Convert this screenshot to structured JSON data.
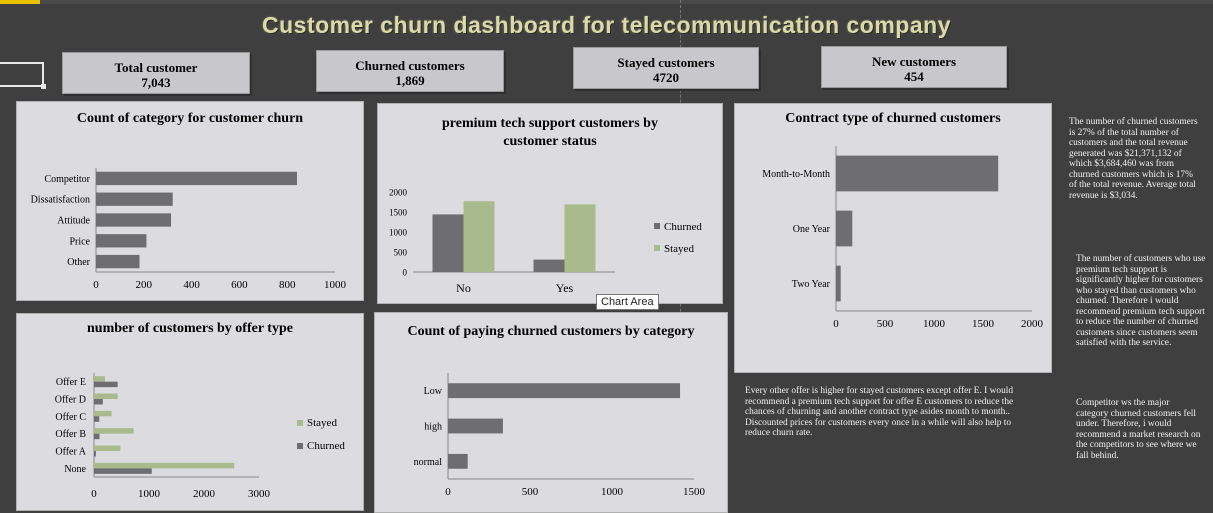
{
  "title": "Customer churn dashboard for telecommunication  company",
  "kpis": [
    {
      "label": "Total customer",
      "value": "7,043"
    },
    {
      "label": "Churned  customers",
      "value": "1,869"
    },
    {
      "label": "Stayed customers",
      "value": "4720"
    },
    {
      "label": "New customers",
      "value": "454"
    }
  ],
  "colors": {
    "churned": "#6d6d72",
    "stayed": "#a9bb8c",
    "panel": "#dcdce0",
    "background": "#3f3f3f"
  },
  "tooltip": "Chart Area",
  "notes": {
    "revenue": "The number of churned customers is 27% of the total number of customers and the total revenue generated was $21,371,132 of which $3,684,460 was from churned customers which is 17% of the total revenue. Average total revenue is $3,034.",
    "premium": "The number of customers who use premium tech support is significantly higher for customers who stayed than customers who churned. Therefore i would recommend premium tech support to reduce the number of churned customers since customers seem satisfied with the service.",
    "offers": "Every other offer is higher for stayed customers except offer E. I would recommend a premium tech support for offer E customers to reduce the chances of churning and another contract type asides month to month.. Discounted prices for customers every once in a while  will also help to reduce churn rate.",
    "competitor": "Competitor ws the major category churned customers fell under. Therefore, i would recommend a market research on the competitors to see where we fall behind."
  },
  "chart_data": [
    {
      "id": "churn_category",
      "type": "bar",
      "orientation": "horizontal",
      "title": "Count of  category for customer churn",
      "categories": [
        "Competitor",
        "Dissatisfaction",
        "Attitude",
        "Price",
        "Other"
      ],
      "values": [
        841,
        321,
        314,
        211,
        182
      ],
      "xlim": [
        0,
        1000
      ],
      "xticks": [
        "0",
        "200",
        "400",
        "600",
        "800",
        "1000"
      ],
      "grid": false
    },
    {
      "id": "premium_support",
      "type": "bar",
      "title": "premium tech support customers by customer status",
      "categories": [
        "No",
        "Yes"
      ],
      "series": [
        {
          "name": "Churned",
          "values": [
            1440,
            310
          ]
        },
        {
          "name": "Stayed",
          "values": [
            1770,
            1690
          ]
        }
      ],
      "ylim": [
        0,
        2000
      ],
      "yticks": [
        "0",
        "500",
        "1000",
        "1500",
        "2000"
      ],
      "legend": "right"
    },
    {
      "id": "contract_type",
      "type": "bar",
      "orientation": "horizontal",
      "title": "Contract type of  churned customers",
      "categories": [
        "Month-to-Month",
        "One Year",
        "Two Year"
      ],
      "values": [
        1655,
        166,
        48
      ],
      "xlim": [
        0,
        2000
      ],
      "xticks": [
        "0",
        "500",
        "1000",
        "1500",
        "2000"
      ]
    },
    {
      "id": "offer_type",
      "type": "bar",
      "orientation": "horizontal",
      "title": "number of customers by offer type",
      "categories": [
        "Offer E",
        "Offer D",
        "Offer C",
        "Offer B",
        "Offer A",
        "None"
      ],
      "series": [
        {
          "name": "Stayed",
          "values": [
            200,
            430,
            320,
            720,
            480,
            2550
          ]
        },
        {
          "name": "Churned",
          "values": [
            430,
            160,
            95,
            100,
            35,
            1050
          ]
        }
      ],
      "xlim": [
        0,
        3000
      ],
      "xticks": [
        "0",
        "1000",
        "2000",
        "3000"
      ],
      "legend": "right"
    },
    {
      "id": "paying_churned",
      "type": "bar",
      "orientation": "horizontal",
      "title": "Count of  paying churned customers by category",
      "categories": [
        "Low",
        "high",
        "normal"
      ],
      "values": [
        1415,
        335,
        120
      ],
      "xlim": [
        0,
        1500
      ],
      "xticks": [
        "0",
        "500",
        "1000",
        "1500"
      ]
    }
  ]
}
